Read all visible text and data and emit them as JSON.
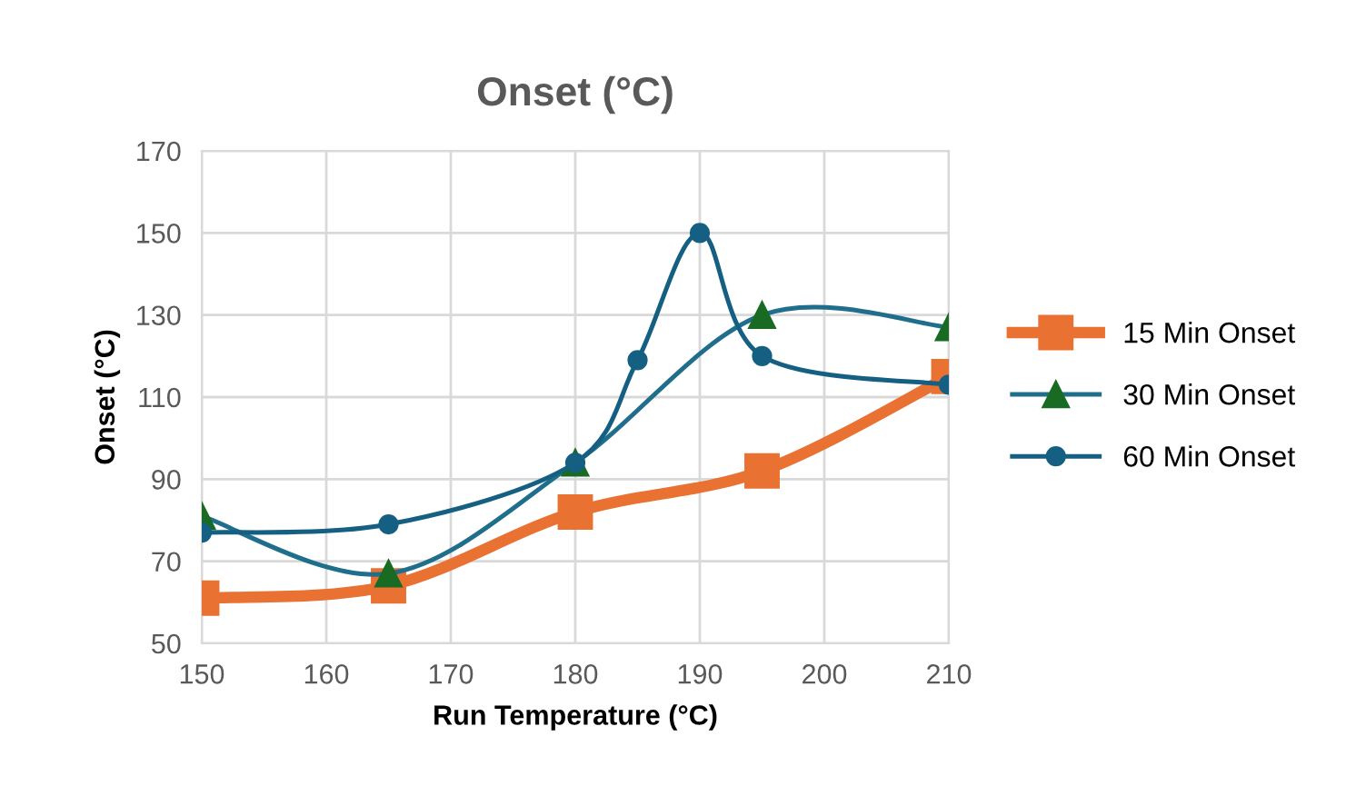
{
  "chart_data": {
    "type": "line",
    "title": "Onset (°C)",
    "xlabel": "Run Temperature (°C)",
    "ylabel": "Onset (°C)",
    "xlim": [
      150,
      210
    ],
    "xticks": [
      150,
      160,
      170,
      180,
      190,
      200,
      210
    ],
    "ylim": [
      50,
      170
    ],
    "yticks": [
      50,
      70,
      90,
      110,
      130,
      150,
      170
    ],
    "grid": true,
    "legend": "right",
    "series": [
      {
        "name": "15 Min Onset",
        "color": "#e97132",
        "x": [
          150,
          165,
          180,
          195,
          210
        ],
        "values": [
          61,
          64,
          82,
          92,
          115
        ],
        "marker": "square"
      },
      {
        "name": "30 Min Onset",
        "color": "#1f6e8c",
        "x": [
          150,
          165,
          180,
          195,
          210
        ],
        "values": [
          81,
          67,
          94,
          130,
          127
        ],
        "marker": "triangle",
        "colors": [
          "#196b24",
          "#196b24",
          "#196b24",
          "#196b24",
          "#196b24"
        ]
      },
      {
        "name": "60 Min Onset",
        "color": "#156082",
        "x": [
          150,
          165,
          180,
          185,
          190,
          195,
          210
        ],
        "values": [
          77,
          79,
          94,
          119,
          150,
          120,
          113
        ],
        "marker": "circle"
      }
    ]
  }
}
